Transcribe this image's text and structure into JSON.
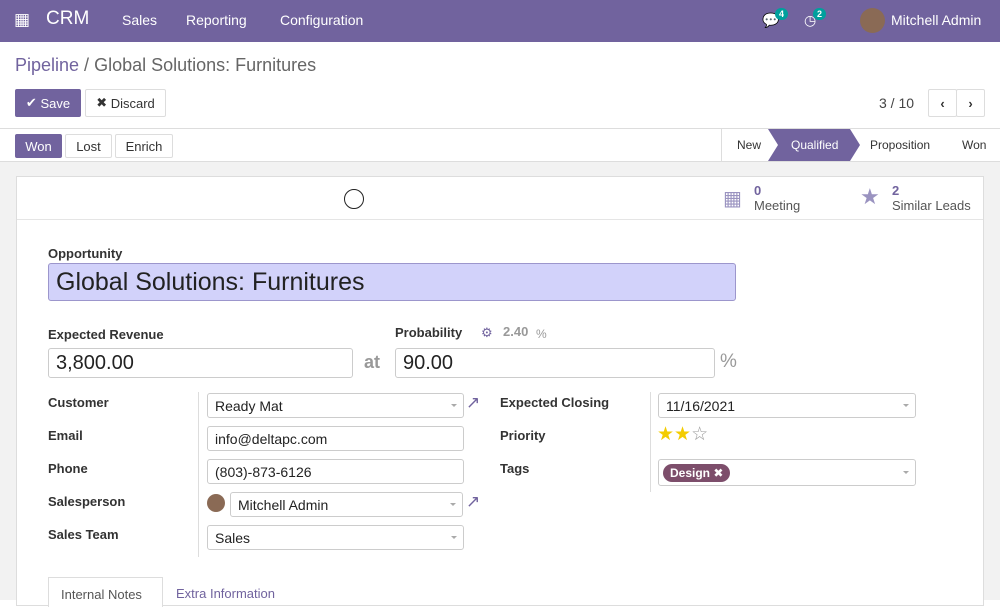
{
  "navbar": {
    "app": "CRM",
    "menu": [
      "Sales",
      "Reporting",
      "Configuration"
    ],
    "messages_count": "4",
    "activities_count": "2",
    "user": "Mitchell Admin"
  },
  "breadcrumb": {
    "parent": "Pipeline",
    "current": "Global Solutions: Furnitures"
  },
  "toolbar": {
    "save": "Save",
    "discard": "Discard",
    "pager": "3 / 10"
  },
  "actions": {
    "won": "Won",
    "lost": "Lost",
    "enrich": "Enrich"
  },
  "stages": {
    "items": [
      "New",
      "Qualified",
      "Proposition",
      "Won"
    ],
    "active": "Qualified"
  },
  "smart_buttons": {
    "meeting_count": "0",
    "meeting_label": "Meeting",
    "similar_count": "2",
    "similar_label": "Similar Leads"
  },
  "form": {
    "opportunity_label": "Opportunity",
    "opportunity": "Global Solutions: Furnitures",
    "revenue_label": "Expected Revenue",
    "revenue": "3,800.00",
    "at": "at",
    "probability_label": "Probability",
    "auto_probability": "2.40",
    "auto_pct": "%",
    "probability": "90.00",
    "pct": "%",
    "customer_label": "Customer",
    "customer": "Ready Mat",
    "email_label": "Email",
    "email": "info@deltapc.com",
    "phone_label": "Phone",
    "phone": "(803)-873-6126",
    "salesperson_label": "Salesperson",
    "salesperson": "Mitchell Admin",
    "team_label": "Sales Team",
    "team": "Sales",
    "closing_label": "Expected Closing",
    "closing": "11/16/2021",
    "priority_label": "Priority",
    "priority_stars": 2,
    "priority_max": 3,
    "tags_label": "Tags",
    "tags": [
      "Design"
    ]
  },
  "tabs": [
    "Internal Notes",
    "Extra Information"
  ],
  "colors": {
    "brand": "#71639e",
    "badge": "#00a09d",
    "tag": "#7d4e6b",
    "star": "#f3cc00"
  }
}
